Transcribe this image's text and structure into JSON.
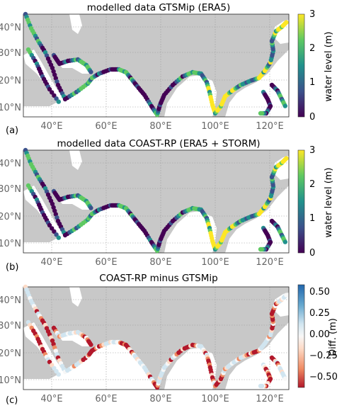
{
  "colors": {
    "land": "#c8c8c8",
    "sea": "#ffffff",
    "grid": "#9a9a9a",
    "viridis": [
      "#440154",
      "#3b528b",
      "#21918c",
      "#5ec962",
      "#fde725"
    ],
    "diverging": [
      "#b2182b",
      "#ef8a62",
      "#fddbc7",
      "#f7f7f7",
      "#d1e5f0",
      "#67a9cf",
      "#2166ac"
    ]
  },
  "axes": {
    "lon_ticks": [
      "40°E",
      "60°E",
      "80°E",
      "100°E",
      "120°E"
    ],
    "lat_ticks": [
      "40°N",
      "30°N",
      "20°N",
      "10°N"
    ]
  },
  "panels": [
    {
      "label": "(a)",
      "title": "modelled data GTSMip (ERA5)",
      "colorbar": {
        "label": "water level (m)",
        "ticks": [
          "3",
          "2",
          "1",
          "0"
        ],
        "range": [
          0,
          3
        ],
        "map": "viridis"
      }
    },
    {
      "label": "(b)",
      "title": "modelled data COAST-RP (ERA5 + STORM)",
      "colorbar": {
        "label": "water level (m)",
        "ticks": [
          "3",
          "2",
          "1",
          "0"
        ],
        "range": [
          0,
          3
        ],
        "map": "viridis"
      }
    },
    {
      "label": "(c)",
      "title": "COAST-RP minus GTSMip",
      "colorbar": {
        "label": "Diff. (m)",
        "ticks": [
          "0.50",
          "0.25",
          "0.00",
          "−0.25",
          "−0.50"
        ],
        "range": [
          -0.6,
          0.6
        ],
        "map": "diverging"
      }
    }
  ]
}
